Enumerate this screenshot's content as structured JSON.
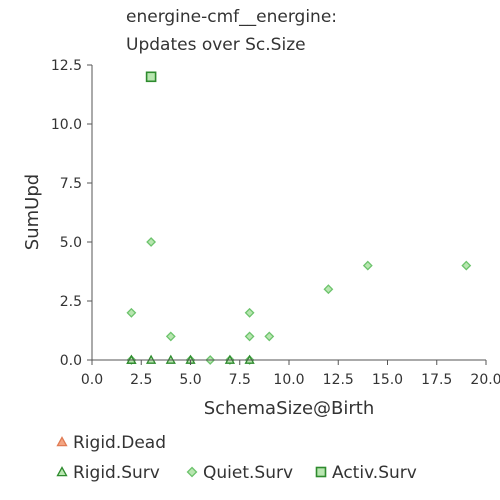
{
  "chart_data": {
    "type": "scatter",
    "title_lines": [
      "energine-cmf__energine:",
      "Updates over Sc.Size"
    ],
    "xlabel": "SchemaSize@Birth",
    "ylabel": "SumUpd",
    "xlim": [
      0,
      20
    ],
    "ylim": [
      0,
      12.5
    ],
    "x_ticks": [
      "0.0",
      "2.5",
      "5.0",
      "7.5",
      "10.0",
      "12.5",
      "15.0",
      "17.5",
      "20.0"
    ],
    "y_ticks": [
      "0.0",
      "2.5",
      "5.0",
      "7.5",
      "10.0",
      "12.5"
    ],
    "grid": false,
    "legend_placement": "bottom",
    "series": [
      {
        "name": "Rigid.Dead",
        "marker": "triangle",
        "color": "#f4a582",
        "stroke": "#e07b54",
        "points": []
      },
      {
        "name": "Rigid.Surv",
        "marker": "triangle",
        "color": "#b8e6b0",
        "stroke": "#2e8b2e",
        "points": [
          [
            2,
            0
          ],
          [
            2,
            0
          ],
          [
            3,
            0
          ],
          [
            4,
            0
          ],
          [
            5,
            0
          ],
          [
            7,
            0
          ],
          [
            8,
            0
          ]
        ]
      },
      {
        "name": "Quiet.Surv",
        "marker": "diamond",
        "color": "#b8e6b0",
        "stroke": "#6cc36c",
        "points": [
          [
            2,
            2
          ],
          [
            2,
            0
          ],
          [
            3,
            5
          ],
          [
            4,
            1
          ],
          [
            5,
            0
          ],
          [
            6,
            0
          ],
          [
            7,
            0
          ],
          [
            8,
            2
          ],
          [
            8,
            1
          ],
          [
            8,
            0
          ],
          [
            9,
            1
          ],
          [
            12,
            3
          ],
          [
            14,
            4
          ],
          [
            19,
            4
          ]
        ]
      },
      {
        "name": "Activ.Surv",
        "marker": "square",
        "color": "#b8e6b0",
        "stroke": "#2e8b2e",
        "points": [
          [
            3,
            12
          ]
        ]
      }
    ]
  }
}
